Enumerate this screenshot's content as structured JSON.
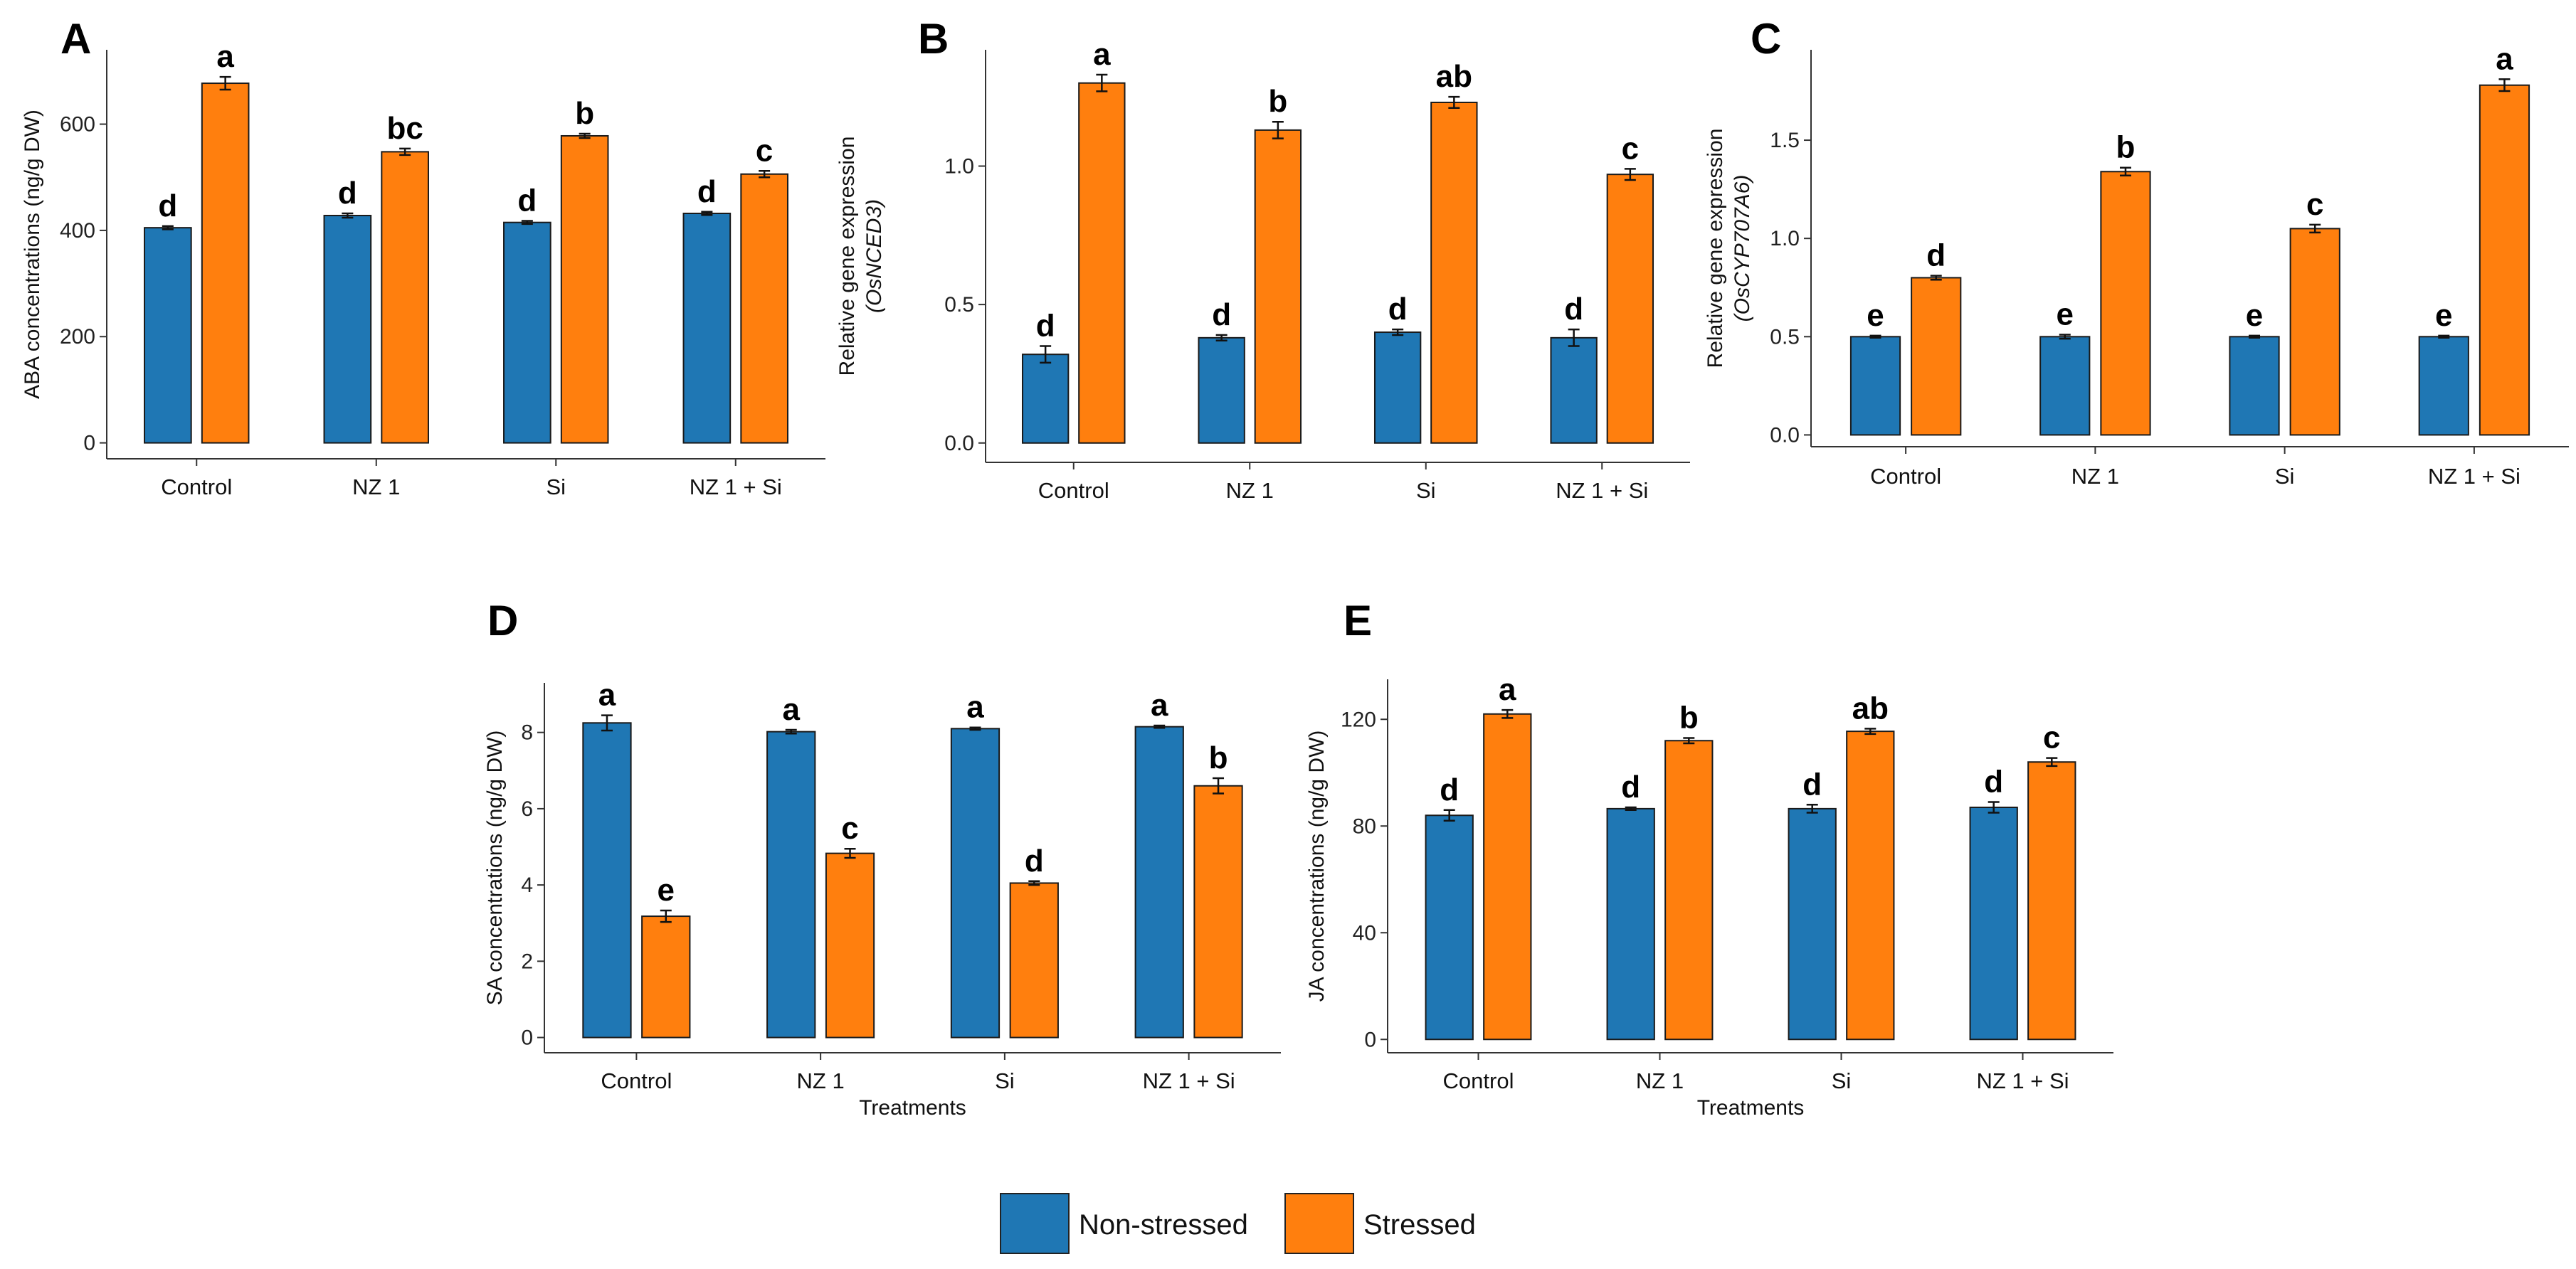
{
  "colors": {
    "non_stressed": "#1f77b4",
    "stressed": "#ff7f0e"
  },
  "legend": {
    "non_stressed": "Non-stressed",
    "stressed": "Stressed"
  },
  "chart_data": [
    {
      "id": "A",
      "panel_label": "A",
      "type": "bar",
      "categories": [
        "Control",
        "NZ 1",
        "Si",
        "NZ 1 + Si"
      ],
      "ylabel": "ABA concentrations (ng/g DW)",
      "ylabel_gene": "",
      "xlabel": "",
      "ylim": [
        -30,
        740
      ],
      "yticks": [
        0,
        200,
        400,
        600
      ],
      "tick_decimals": 0,
      "series": [
        {
          "name": "Non-stressed",
          "values": [
            405,
            428,
            415,
            432
          ],
          "errors": [
            3,
            4,
            3,
            3
          ],
          "letters": [
            "d",
            "d",
            "d",
            "d"
          ]
        },
        {
          "name": "Stressed",
          "values": [
            677,
            548,
            578,
            506
          ],
          "errors": [
            12,
            6,
            4,
            6
          ],
          "letters": [
            "a",
            "bc",
            "b",
            "c"
          ]
        }
      ]
    },
    {
      "id": "B",
      "panel_label": "B",
      "type": "bar",
      "categories": [
        "Control",
        "NZ 1",
        "Si",
        "NZ 1 + Si"
      ],
      "ylabel": "Relative gene expression",
      "ylabel_gene": "(OsNCED3)",
      "xlabel": "",
      "ylim": [
        -0.07,
        1.42
      ],
      "yticks": [
        0.0,
        0.5,
        1.0
      ],
      "tick_decimals": 1,
      "series": [
        {
          "name": "Non-stressed",
          "values": [
            0.32,
            0.38,
            0.4,
            0.38
          ],
          "errors": [
            0.03,
            0.01,
            0.01,
            0.03
          ],
          "letters": [
            "d",
            "d",
            "d",
            "d"
          ]
        },
        {
          "name": "Stressed",
          "values": [
            1.3,
            1.13,
            1.23,
            0.97
          ],
          "errors": [
            0.03,
            0.03,
            0.02,
            0.02
          ],
          "letters": [
            "a",
            "b",
            "ab",
            "c"
          ]
        }
      ]
    },
    {
      "id": "C",
      "panel_label": "C",
      "type": "bar",
      "categories": [
        "Control",
        "NZ 1",
        "Si",
        "NZ 1 + Si"
      ],
      "ylabel": "Relative gene expression",
      "ylabel_gene": "(OsCYP707A6)",
      "xlabel": "",
      "ylim": [
        -0.06,
        1.96
      ],
      "yticks": [
        0.0,
        0.5,
        1.0,
        1.5
      ],
      "tick_decimals": 1,
      "series": [
        {
          "name": "Non-stressed",
          "values": [
            0.5,
            0.5,
            0.5,
            0.5
          ],
          "errors": [
            0.005,
            0.01,
            0.005,
            0.005
          ],
          "letters": [
            "e",
            "e",
            "e",
            "e"
          ]
        },
        {
          "name": "Stressed",
          "values": [
            0.8,
            1.34,
            1.05,
            1.78
          ],
          "errors": [
            0.01,
            0.02,
            0.02,
            0.03
          ],
          "letters": [
            "d",
            "b",
            "c",
            "a"
          ]
        }
      ]
    },
    {
      "id": "D",
      "panel_label": "D",
      "type": "bar",
      "categories": [
        "Control",
        "NZ 1",
        "Si",
        "NZ 1 + Si"
      ],
      "ylabel": "SA concentrations (ng/g DW)",
      "ylabel_gene": "",
      "xlabel": "Treatments",
      "ylim": [
        -0.4,
        9.3
      ],
      "yticks": [
        0,
        2,
        4,
        6,
        8
      ],
      "tick_decimals": 0,
      "series": [
        {
          "name": "Non-stressed",
          "values": [
            8.25,
            8.02,
            8.1,
            8.15
          ],
          "errors": [
            0.2,
            0.05,
            0.03,
            0.03
          ],
          "letters": [
            "a",
            "a",
            "a",
            "a"
          ]
        },
        {
          "name": "Stressed",
          "values": [
            3.18,
            4.83,
            4.05,
            6.6
          ],
          "errors": [
            0.15,
            0.12,
            0.05,
            0.2
          ],
          "letters": [
            "e",
            "c",
            "d",
            "b"
          ]
        }
      ]
    },
    {
      "id": "E",
      "panel_label": "E",
      "type": "bar",
      "categories": [
        "Control",
        "NZ 1",
        "Si",
        "NZ 1 + Si"
      ],
      "ylabel": "JA concentrations (ng/g DW)",
      "ylabel_gene": "",
      "xlabel": "Treatments",
      "ylim": [
        -5,
        135
      ],
      "yticks": [
        0,
        40,
        80,
        120
      ],
      "tick_decimals": 0,
      "series": [
        {
          "name": "Non-stressed",
          "values": [
            84,
            86.5,
            86.5,
            87
          ],
          "errors": [
            2,
            0.5,
            1.5,
            2
          ],
          "letters": [
            "d",
            "d",
            "d",
            "d"
          ]
        },
        {
          "name": "Stressed",
          "values": [
            122,
            112,
            115.5,
            104
          ],
          "errors": [
            1.5,
            1,
            1,
            1.5
          ],
          "letters": [
            "a",
            "b",
            "ab",
            "c"
          ]
        }
      ]
    }
  ]
}
